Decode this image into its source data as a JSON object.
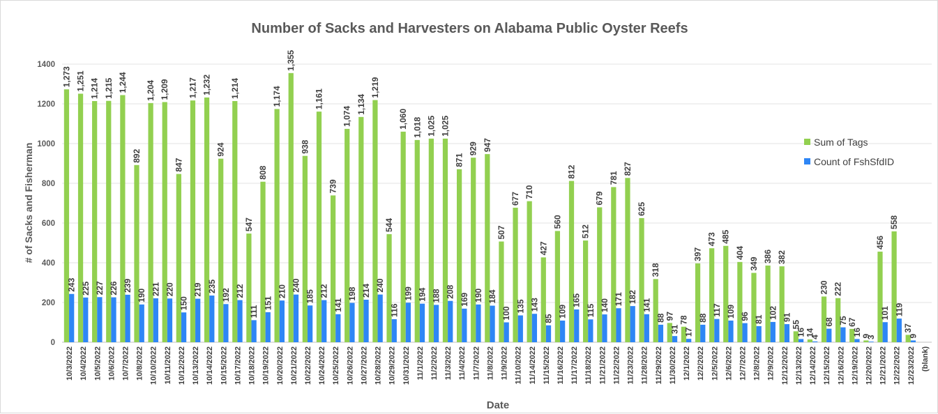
{
  "chart_data": {
    "type": "bar",
    "title": "Number of Sacks and Harvesters on Alabama Public Oyster Reefs",
    "xlabel": "Date",
    "ylabel": "# of Sacks and Fisherman",
    "ylim": [
      0,
      1400
    ],
    "yticks": [
      "0",
      "200",
      "400",
      "600",
      "800",
      "1000",
      "1200",
      "1400"
    ],
    "grid": true,
    "legend_position": "right",
    "categories": [
      "10/3/2022",
      "10/4/2022",
      "10/5/2022",
      "10/6/2022",
      "10/7/2022",
      "10/8/2022",
      "10/10/2022",
      "10/11/2022",
      "10/12/2022",
      "10/13/2022",
      "10/14/2022",
      "10/15/2022",
      "10/17/2022",
      "10/18/2022",
      "10/19/2022",
      "10/20/2022",
      "10/21/2022",
      "10/22/2022",
      "10/24/2022",
      "10/25/2022",
      "10/26/2022",
      "10/27/2022",
      "10/28/2022",
      "10/29/2022",
      "10/31/2022",
      "11/1/2022",
      "11/2/2022",
      "11/3/2022",
      "11/4/2022",
      "11/7/2022",
      "11/8/2022",
      "11/9/2022",
      "11/10/2022",
      "11/14/2022",
      "11/15/2022",
      "11/16/2022",
      "11/17/2022",
      "11/18/2022",
      "11/21/2022",
      "11/22/2022",
      "11/23/2022",
      "11/28/2022",
      "11/29/2022",
      "11/30/2022",
      "12/1/2022",
      "12/2/2022",
      "12/5/2022",
      "12/6/2022",
      "12/7/2022",
      "12/8/2022",
      "12/9/2022",
      "12/12/2022",
      "12/13/2022",
      "12/14/2022",
      "12/15/2022",
      "12/16/2022",
      "12/19/2022",
      "12/20/2022",
      "12/21/2022",
      "12/22/2022",
      "12/23/2022",
      "(blank)"
    ],
    "series": [
      {
        "name": "Sum of Tags",
        "color": "#92d050",
        "values": [
          1273,
          1251,
          1214,
          1215,
          1244,
          892,
          1204,
          1209,
          847,
          1217,
          1232,
          924,
          1214,
          547,
          808,
          1174,
          1355,
          938,
          1161,
          739,
          1074,
          1134,
          1219,
          544,
          1060,
          1018,
          1025,
          1025,
          871,
          929,
          947,
          507,
          677,
          710,
          427,
          560,
          812,
          512,
          679,
          781,
          827,
          625,
          318,
          97,
          78,
          397,
          473,
          485,
          404,
          349,
          386,
          382,
          55,
          14,
          230,
          222,
          67,
          9,
          456,
          558,
          37,
          null
        ],
        "labels": [
          "1,273",
          "1,251",
          "1,214",
          "1,215",
          "1,244",
          "892",
          "1,204",
          "1,209",
          "847",
          "1,217",
          "1,232",
          "924",
          "1,214",
          "547",
          "808",
          "1,174",
          "1,355",
          "938",
          "1,161",
          "739",
          "1,074",
          "1,134",
          "1,219",
          "544",
          "1,060",
          "1,018",
          "1,025",
          "1,025",
          "871",
          "929",
          "947",
          "507",
          "677",
          "710",
          "427",
          "560",
          "812",
          "512",
          "679",
          "781",
          "827",
          "625",
          "318",
          "97",
          "78",
          "397",
          "473",
          "485",
          "404",
          "349",
          "386",
          "382",
          "55",
          "14",
          "230",
          "222",
          "67",
          "9",
          "456",
          "558",
          "37",
          ""
        ]
      },
      {
        "name": "Count of FshSfdID",
        "color": "#2e86f5",
        "values": [
          243,
          225,
          227,
          226,
          239,
          190,
          221,
          220,
          150,
          219,
          235,
          192,
          212,
          111,
          151,
          210,
          240,
          185,
          212,
          141,
          198,
          214,
          240,
          116,
          199,
          194,
          188,
          208,
          169,
          190,
          184,
          100,
          135,
          143,
          85,
          109,
          165,
          115,
          140,
          171,
          182,
          141,
          88,
          31,
          17,
          88,
          117,
          109,
          96,
          81,
          102,
          91,
          16,
          4,
          68,
          75,
          16,
          3,
          101,
          119,
          9,
          null
        ],
        "labels": [
          "243",
          "225",
          "227",
          "226",
          "239",
          "190",
          "221",
          "220",
          "150",
          "219",
          "235",
          "192",
          "212",
          "111",
          "151",
          "210",
          "240",
          "185",
          "212",
          "141",
          "198",
          "214",
          "240",
          "116",
          "199",
          "194",
          "188",
          "208",
          "169",
          "190",
          "184",
          "100",
          "135",
          "143",
          "85",
          "109",
          "165",
          "115",
          "140",
          "171",
          "182",
          "141",
          "88",
          "31",
          "17",
          "88",
          "117",
          "109",
          "96",
          "81",
          "102",
          "91",
          "16",
          "4",
          "68",
          "75",
          "16",
          "3",
          "101",
          "119",
          "9",
          ""
        ]
      }
    ]
  }
}
